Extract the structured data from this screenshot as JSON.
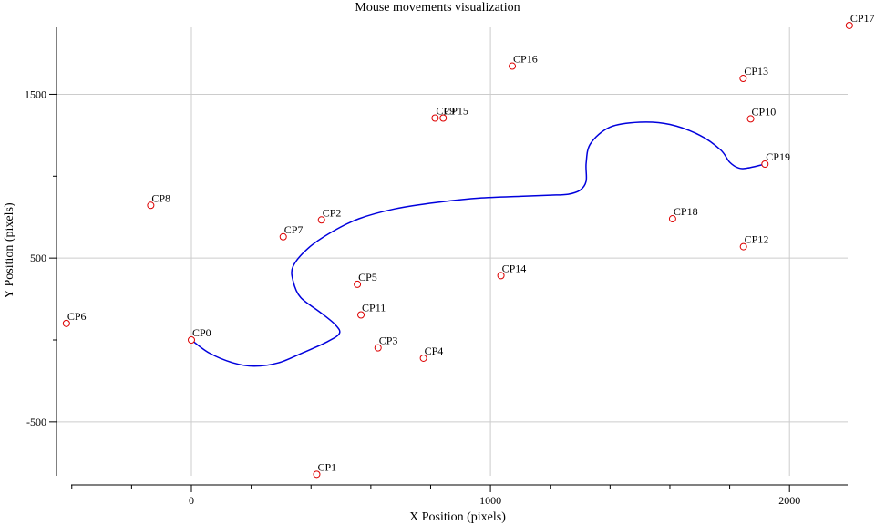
{
  "chart_data": {
    "type": "scatter",
    "title": "Mouse movements visualization",
    "xlabel": "X Position (pixels)",
    "ylabel": "Y Position (pixels)",
    "xlim": [
      -420,
      2200
    ],
    "ylim": [
      -670,
      1410
    ],
    "x_ticks": [
      0,
      1000,
      2000
    ],
    "x_tick_labels": [
      "0",
      "1000",
      "2000"
    ],
    "x_minor_ticks": [
      -400,
      -200,
      200,
      400,
      600,
      800,
      1200,
      1400,
      1600,
      1800
    ],
    "y_ticks": [
      -500,
      500,
      1500
    ],
    "y_tick_labels": [
      "-500",
      "500",
      "1500"
    ],
    "y_minor_ticks": [
      0,
      1000
    ],
    "grid": true,
    "path_color": "#0000dd",
    "marker_color": "#dd0000",
    "control_points": [
      {
        "label": "CP0",
        "x": 0,
        "y": 0
      },
      {
        "label": "CP1",
        "x": 419,
        "y": -820
      },
      {
        "label": "CP2",
        "x": 435,
        "y": 733
      },
      {
        "label": "CP3",
        "x": 624,
        "y": -48
      },
      {
        "label": "CP4",
        "x": 776,
        "y": -111
      },
      {
        "label": "CP5",
        "x": 555,
        "y": 340
      },
      {
        "label": "CP6",
        "x": -418,
        "y": 101
      },
      {
        "label": "CP7",
        "x": 307,
        "y": 630
      },
      {
        "label": "CP8",
        "x": -136,
        "y": 822
      },
      {
        "label": "CP9",
        "x": 815,
        "y": 1355
      },
      {
        "label": "CP10",
        "x": 1870,
        "y": 1350
      },
      {
        "label": "CP11",
        "x": 567,
        "y": 153
      },
      {
        "label": "CP12",
        "x": 1846,
        "y": 570
      },
      {
        "label": "CP13",
        "x": 1845,
        "y": 1597
      },
      {
        "label": "CP14",
        "x": 1035,
        "y": 393
      },
      {
        "label": "CP15",
        "x": 842,
        "y": 1355
      },
      {
        "label": "CP16",
        "x": 1073,
        "y": 1672
      },
      {
        "label": "CP17",
        "x": 2200,
        "y": 1920
      },
      {
        "label": "CP18",
        "x": 1609,
        "y": 740
      },
      {
        "label": "CP19",
        "x": 1918,
        "y": 1074
      }
    ],
    "path": [
      [
        0,
        0
      ],
      [
        60,
        -80
      ],
      [
        140,
        -140
      ],
      [
        210,
        -160
      ],
      [
        290,
        -140
      ],
      [
        370,
        -80
      ],
      [
        450,
        -15
      ],
      [
        495,
        40
      ],
      [
        480,
        95
      ],
      [
        430,
        170
      ],
      [
        365,
        260
      ],
      [
        340,
        360
      ],
      [
        340,
        450
      ],
      [
        390,
        560
      ],
      [
        470,
        660
      ],
      [
        560,
        740
      ],
      [
        680,
        800
      ],
      [
        820,
        840
      ],
      [
        960,
        866
      ],
      [
        1100,
        877
      ],
      [
        1200,
        884
      ],
      [
        1260,
        890
      ],
      [
        1300,
        915
      ],
      [
        1320,
        970
      ],
      [
        1320,
        1080
      ],
      [
        1335,
        1200
      ],
      [
        1400,
        1300
      ],
      [
        1500,
        1330
      ],
      [
        1600,
        1316
      ],
      [
        1700,
        1250
      ],
      [
        1770,
        1160
      ],
      [
        1800,
        1085
      ],
      [
        1830,
        1050
      ],
      [
        1860,
        1050
      ],
      [
        1918,
        1074
      ]
    ]
  }
}
